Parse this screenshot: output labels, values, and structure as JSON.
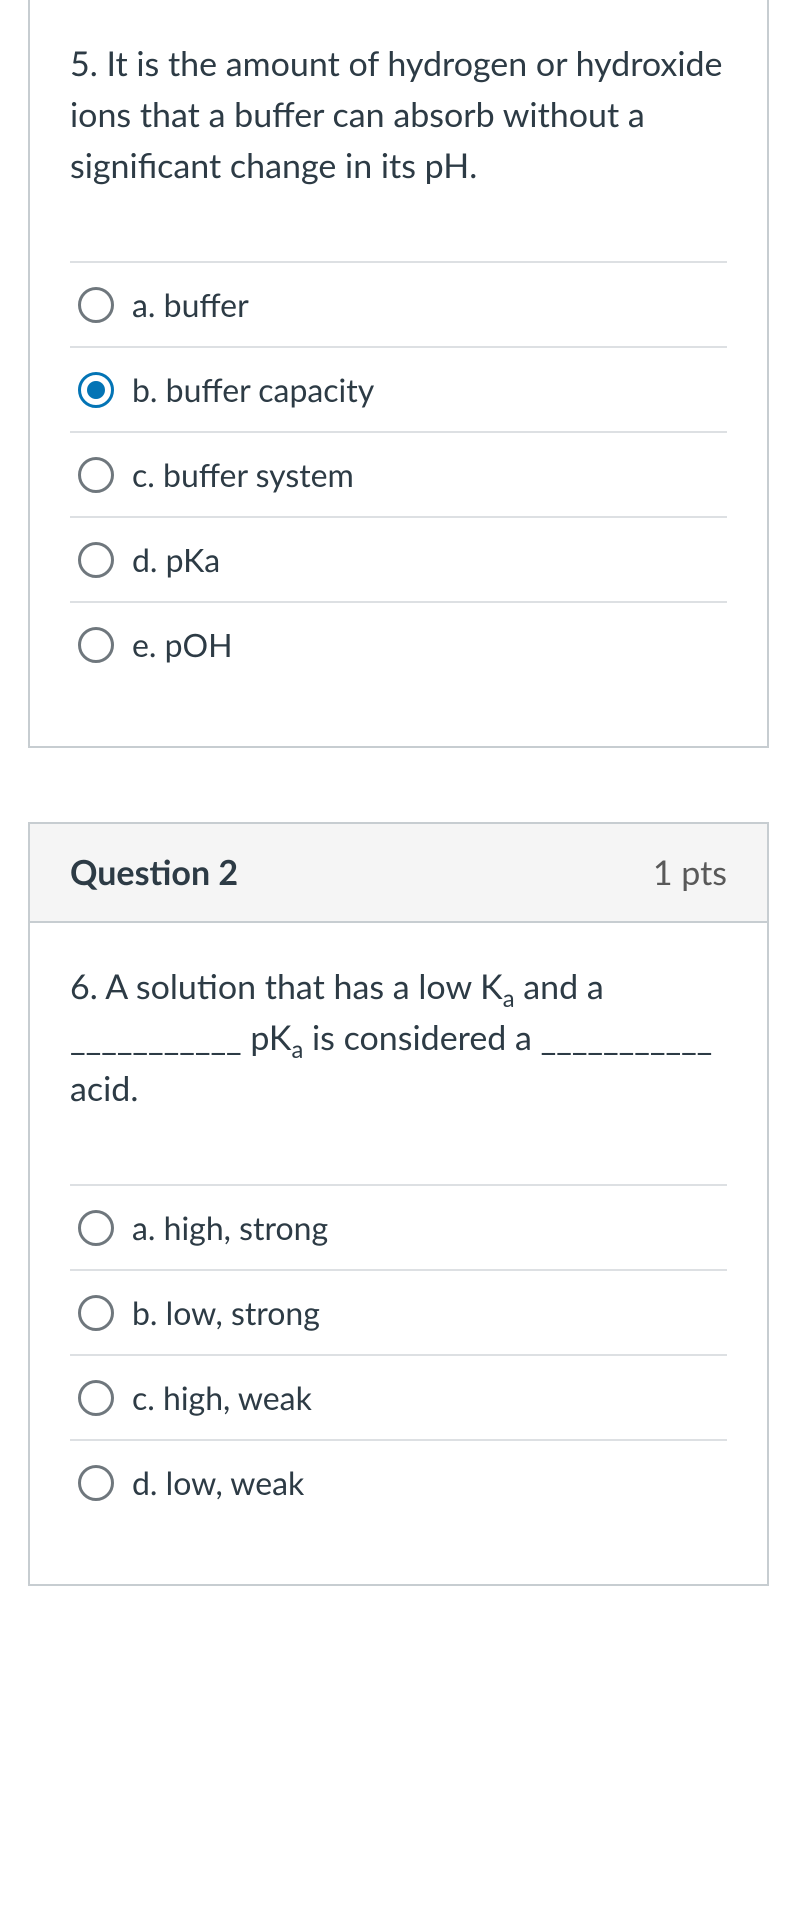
{
  "colors": {
    "text": "#2d3b45",
    "border": "#c7cdd1",
    "divider": "#dde0e3",
    "radio_border": "#6f777d",
    "radio_checked": "#0374b5",
    "header_bg": "#f5f5f5",
    "bg": "#ffffff"
  },
  "q1": {
    "text": "5. It is the amount of hydrogen or hydroxide ions that a buffer can absorb without a significant change in its pH.",
    "options": [
      {
        "label": "a. buffer",
        "checked": false
      },
      {
        "label": "b. buffer capacity",
        "checked": true
      },
      {
        "label": "c. buffer system",
        "checked": false
      },
      {
        "label": "d. pKa",
        "checked": false
      },
      {
        "label": "e. pOH",
        "checked": false
      }
    ]
  },
  "q2": {
    "title": "Question 2",
    "pts": "1 pts",
    "text_html": "6. A solution that has a low K<span class=\"sub\">a</span> and a ___________ pK<span class=\"sub\">a</span> is considered a ___________ acid.",
    "options": [
      {
        "label": "a. high, strong",
        "checked": false
      },
      {
        "label": "b. low, strong",
        "checked": false
      },
      {
        "label": "c. high, weak",
        "checked": false
      },
      {
        "label": "d. low, weak",
        "checked": false
      }
    ]
  }
}
